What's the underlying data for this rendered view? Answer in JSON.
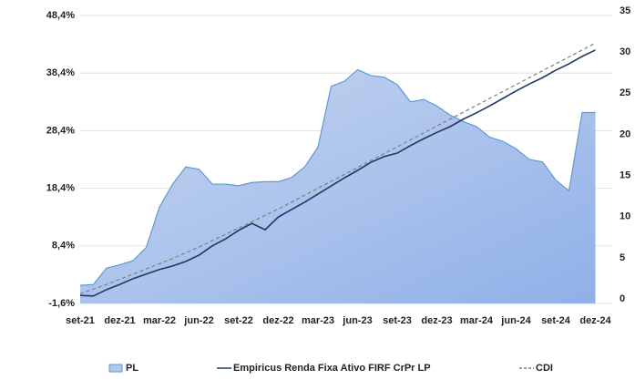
{
  "chart_data": {
    "type": "area-line",
    "categories": [
      "set-21",
      null,
      null,
      "dez-21",
      null,
      null,
      "mar-22",
      null,
      null,
      "jun-22",
      null,
      null,
      "set-22",
      null,
      null,
      "dez-22",
      null,
      null,
      "mar-23",
      null,
      null,
      "jun-23",
      null,
      null,
      "set-23",
      null,
      null,
      "dez-23",
      null,
      null,
      "mar-24",
      null,
      null,
      "jun-24",
      null,
      null,
      "set-24",
      null,
      null,
      "dez-24"
    ],
    "series": [
      {
        "name": "PL",
        "type": "area",
        "axis": "y2",
        "color": "#5b9bd5",
        "fill": "#b4c7e7",
        "values": [
          2.2,
          2.3,
          4.3,
          4.7,
          5.2,
          6.8,
          11.7,
          14.5,
          16.6,
          16.3,
          14.5,
          14.5,
          14.3,
          14.7,
          14.8,
          14.8,
          15.3,
          16.6,
          19,
          26.4,
          27,
          28.4,
          27.7,
          27.5,
          26.6,
          24.5,
          24.8,
          24,
          22.9,
          22.1,
          21.5,
          20.2,
          19.7,
          18.8,
          17.5,
          17.2,
          15,
          13.7,
          23.2,
          23.2
        ]
      },
      {
        "name": "Empiricus Renda Fixa Ativo FIRF CrPr LP",
        "type": "line",
        "axis": "y",
        "color": "#1f3864",
        "dashed": false,
        "values": [
          -0.2,
          -0.3,
          0.8,
          1.7,
          2.7,
          3.5,
          4.3,
          4.9,
          5.7,
          6.8,
          8.4,
          9.6,
          11.1,
          12.3,
          11.2,
          13.4,
          14.7,
          16,
          17.4,
          18.8,
          20.2,
          21.5,
          22.9,
          23.9,
          24.5,
          25.8,
          27,
          28.1,
          29.1,
          30.4,
          31.5,
          32.7,
          34,
          35.3,
          36.5,
          37.6,
          38.9,
          40,
          41.3,
          42.4
        ]
      },
      {
        "name": "CDI",
        "type": "line",
        "axis": "y",
        "color": "#7f7f7f",
        "dashed": true,
        "values": [
          0.1,
          0.9,
          1.7,
          2.6,
          3.5,
          4.4,
          5.3,
          6.2,
          7.2,
          8.2,
          9.3,
          10.4,
          11.5,
          12.6,
          13.7,
          14.8,
          16.0,
          17.2,
          18.4,
          19.6,
          20.8,
          22.0,
          23.2,
          24.4,
          25.6,
          26.8,
          28.0,
          29.2,
          30.4,
          31.6,
          32.8,
          34.0,
          35.2,
          36.4,
          37.6,
          38.8,
          40.0,
          41.2,
          42.4,
          43.6
        ]
      }
    ],
    "ylim": [
      -1.6,
      48.4
    ],
    "yticks": [
      {
        "value": -1.6,
        "label": "-1,6%"
      },
      {
        "value": 8.4,
        "label": "8,4%"
      },
      {
        "value": 18.4,
        "label": "18,4%"
      },
      {
        "value": 28.4,
        "label": "28,4%"
      },
      {
        "value": 38.4,
        "label": "38,4%"
      },
      {
        "value": 48.4,
        "label": "48,4%"
      }
    ],
    "y2lim": [
      0,
      35
    ],
    "y2ticks": [
      0,
      5,
      10,
      15,
      20,
      25,
      30,
      35
    ],
    "grid": true,
    "legend": "bottom"
  }
}
